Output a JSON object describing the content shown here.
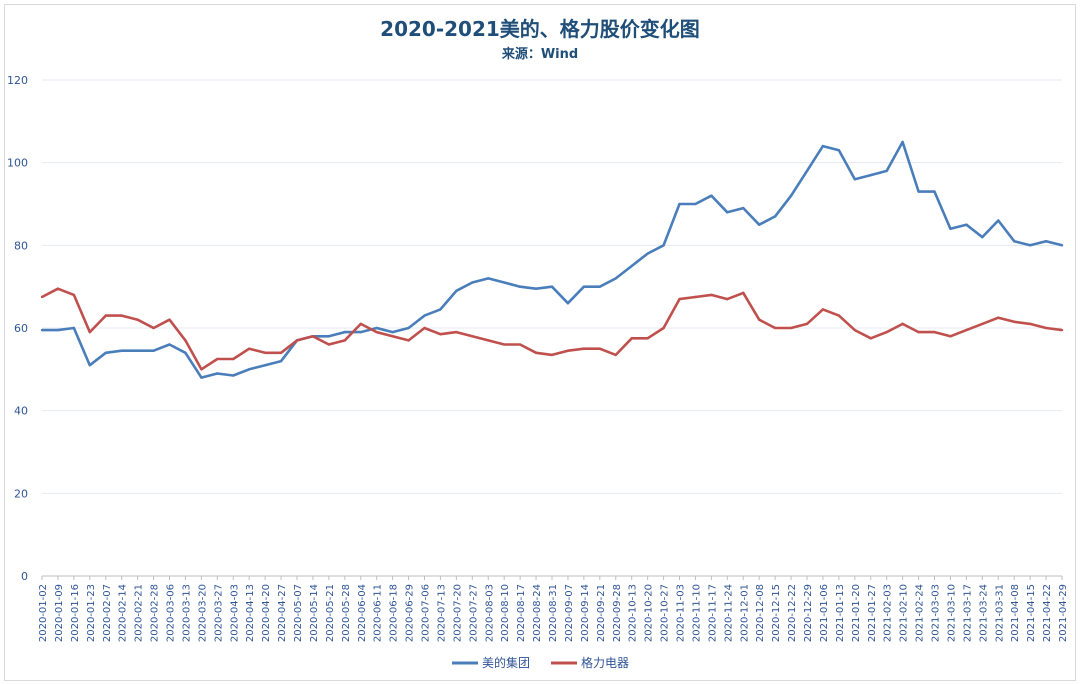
{
  "chart_data": {
    "type": "line",
    "title": "2020-2021美的、格力股价变化图",
    "subtitle": "来源：Wind",
    "ylim": [
      0,
      120
    ],
    "yticks": [
      0,
      20,
      40,
      60,
      80,
      100,
      120
    ],
    "grid": true,
    "legend_position": "bottom",
    "x": [
      "2020-01-02",
      "2020-01-09",
      "2020-01-16",
      "2020-01-23",
      "2020-02-07",
      "2020-02-14",
      "2020-02-21",
      "2020-02-28",
      "2020-03-06",
      "2020-03-13",
      "2020-03-20",
      "2020-03-27",
      "2020-04-03",
      "2020-04-13",
      "2020-04-20",
      "2020-04-27",
      "2020-05-07",
      "2020-05-14",
      "2020-05-21",
      "2020-05-28",
      "2020-06-04",
      "2020-06-11",
      "2020-06-18",
      "2020-06-29",
      "2020-07-06",
      "2020-07-13",
      "2020-07-20",
      "2020-07-27",
      "2020-08-03",
      "2020-08-10",
      "2020-08-17",
      "2020-08-24",
      "2020-08-31",
      "2020-09-07",
      "2020-09-14",
      "2020-09-21",
      "2020-09-28",
      "2020-10-13",
      "2020-10-20",
      "2020-10-27",
      "2020-11-03",
      "2020-11-10",
      "2020-11-17",
      "2020-11-24",
      "2020-12-01",
      "2020-12-08",
      "2020-12-15",
      "2020-12-22",
      "2020-12-29",
      "2021-01-06",
      "2021-01-13",
      "2021-01-20",
      "2021-01-27",
      "2021-02-03",
      "2021-02-10",
      "2021-02-24",
      "2021-03-03",
      "2021-03-10",
      "2021-03-17",
      "2021-03-24",
      "2021-03-31",
      "2021-04-08",
      "2021-04-15",
      "2021-04-22",
      "2021-04-29"
    ],
    "series": [
      {
        "name": "美的集团",
        "color": "#4a7ebb",
        "values": [
          59.5,
          59.5,
          60,
          51,
          54,
          54.5,
          54.5,
          54.5,
          56,
          54,
          48,
          49,
          48.5,
          50,
          51,
          52,
          57,
          58,
          58,
          59,
          59,
          60,
          59,
          60,
          63,
          64.5,
          69,
          71,
          72,
          71,
          70,
          69.5,
          70,
          66,
          70,
          70,
          72,
          75,
          78,
          80,
          90,
          90,
          92,
          88,
          89,
          85,
          87,
          92,
          98,
          104,
          103,
          96,
          97,
          98,
          105,
          93,
          93,
          84,
          85,
          82,
          86,
          81,
          80,
          81,
          80
        ]
      },
      {
        "name": "格力电器",
        "color": "#c0504d",
        "values": [
          67.5,
          69.5,
          68,
          59,
          63,
          63,
          62,
          60,
          62,
          57,
          50,
          52.5,
          52.5,
          55,
          54,
          54,
          57,
          58,
          56,
          57,
          61,
          59,
          58,
          57,
          60,
          58.5,
          59,
          58,
          57,
          56,
          56,
          54,
          53.5,
          54.5,
          55,
          55,
          53.5,
          57.5,
          57.5,
          60,
          67,
          67.5,
          68,
          67,
          68.5,
          62,
          60,
          60,
          61,
          64.5,
          63,
          59.5,
          57.5,
          59,
          61,
          59,
          59,
          58,
          59.5,
          61,
          62.5,
          61.5,
          61,
          60,
          59.5
        ]
      }
    ]
  }
}
